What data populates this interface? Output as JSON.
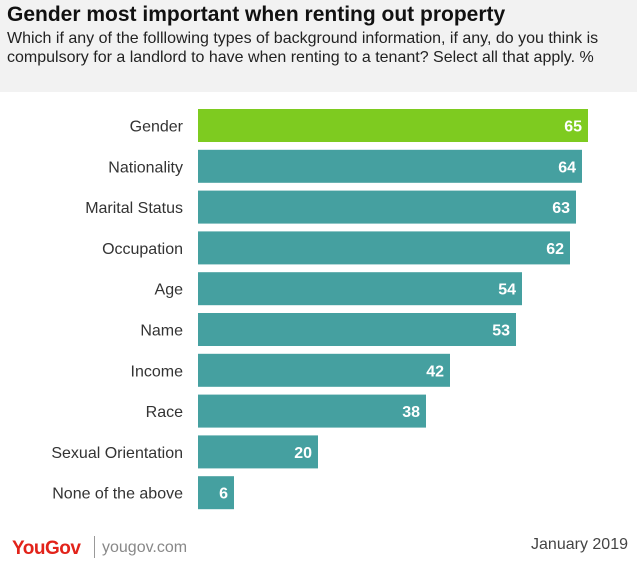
{
  "title": "Gender most important when renting out property",
  "subtitle": "Which if any of the folllowing types of background information, if any, do you think is compulsory for a landlord to have when renting to a tenant? Select all that apply. %",
  "footer": {
    "logo": "YouGov",
    "site": "yougov.com",
    "date": "January 2019"
  },
  "colors": {
    "highlight": "#7ecb20",
    "bar": "#45a0a0",
    "value_label": "#ffffff",
    "category_label": "#333333"
  },
  "chart_data": {
    "type": "bar",
    "orientation": "horizontal",
    "categories": [
      "Gender",
      "Nationality",
      "Marital Status",
      "Occupation",
      "Age",
      "Name",
      "Income",
      "Race",
      "Sexual Orientation",
      "None of the above"
    ],
    "values": [
      65,
      64,
      63,
      62,
      54,
      53,
      42,
      38,
      20,
      6
    ],
    "highlight_index": 0,
    "xlim": [
      0,
      75
    ],
    "grid": false,
    "legend": "none"
  }
}
